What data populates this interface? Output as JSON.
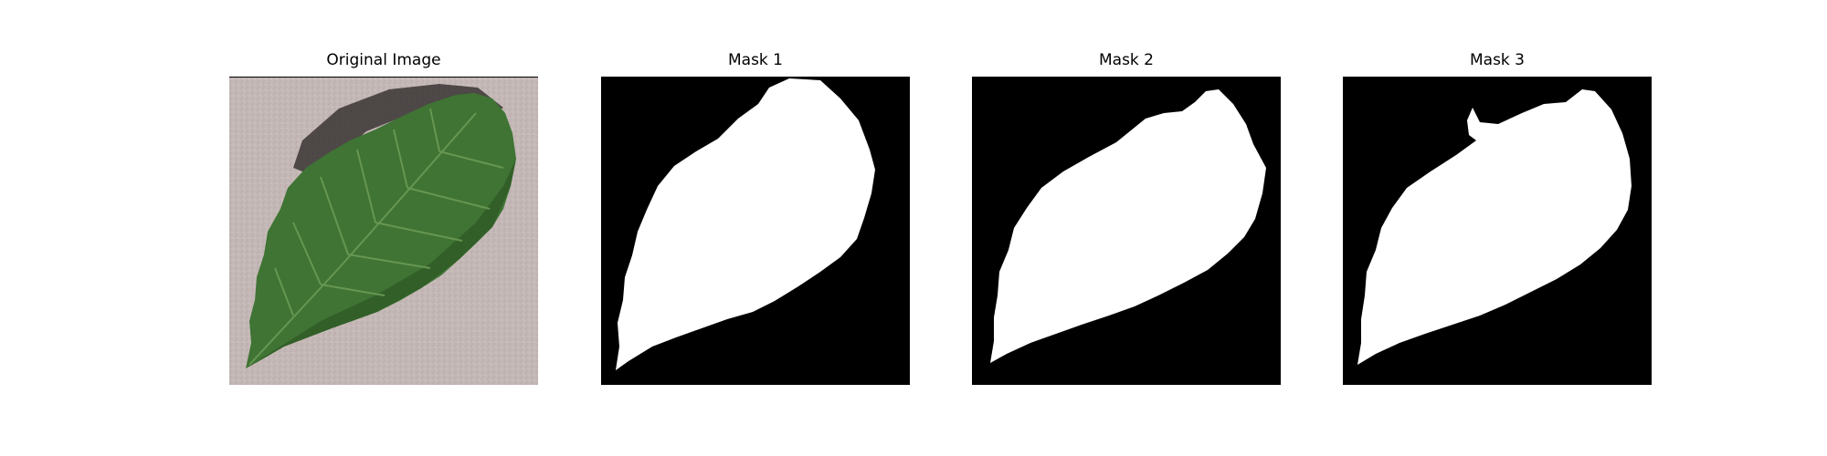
{
  "figure": {
    "panels": [
      {
        "title": "Original Image",
        "kind": "photo"
      },
      {
        "title": "Mask 1",
        "kind": "mask"
      },
      {
        "title": "Mask 2",
        "kind": "mask"
      },
      {
        "title": "Mask 3",
        "kind": "mask"
      }
    ]
  },
  "colors": {
    "background": "#ffffff",
    "mask_background": "#000000",
    "mask_foreground": "#ffffff",
    "photo_background": "#c4b8b6",
    "leaf_dark": "#2f5a26",
    "leaf_mid": "#3f7434",
    "leaf_vein": "#6b9a55",
    "shadow": "#3a3434"
  }
}
